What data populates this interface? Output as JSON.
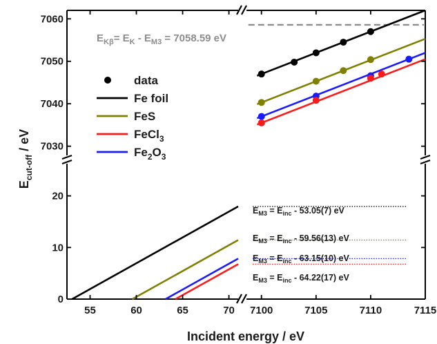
{
  "chart_data": {
    "type": "line",
    "xlabel": "Incident energy / eV",
    "ylabel": {
      "main": "E",
      "sub": "cut-off",
      "unit": "  / eV"
    },
    "colors": {
      "Fe foil": "#000000",
      "FeS": "#808000",
      "FeCl3": "#ff1a1a",
      "Fe2O3": "#1a1aff",
      "data_marker": "#000000",
      "kbeta_line": "#8c8c8c"
    },
    "panels": {
      "low_x": {
        "xlim": [
          52.5,
          71.3
        ],
        "ticks": [
          55,
          60,
          65,
          70
        ]
      },
      "high_x": {
        "xlim": [
          7098.5,
          7115
        ],
        "ticks": [
          7100,
          7105,
          7110,
          7115
        ]
      },
      "top_y": {
        "ylim": [
          7027.5,
          7062
        ],
        "ticks": [
          7030,
          7040,
          7050,
          7060
        ]
      },
      "bottom_y": {
        "ylim": [
          0,
          26.5
        ],
        "ticks": [
          0,
          10,
          20
        ]
      }
    },
    "legend": {
      "position": "upper-left",
      "entries": [
        {
          "label": "data",
          "kind": "marker",
          "color": "#000000"
        },
        {
          "label": "Fe foil",
          "kind": "line",
          "color": "#000000"
        },
        {
          "label": "FeS",
          "kind": "line",
          "color": "#808000"
        },
        {
          "label": "FeCl",
          "sub": "3",
          "kind": "line",
          "color": "#ff1a1a"
        },
        {
          "label": "Fe",
          "sub": "2",
          "label2": "O",
          "sub2": "3",
          "kind": "line",
          "color": "#1a1aff"
        }
      ]
    },
    "kbeta_annotation": {
      "text": {
        "a": "E",
        "a_sub": "Kβ",
        "b": "= E",
        "b_sub": "K",
        "c": " - E",
        "c_sub": "M3",
        "d": " = 7058.59 eV"
      },
      "value": 7058.59
    },
    "series": [
      {
        "name": "Fe foil",
        "color": "#000000",
        "fit_offset": 53.05,
        "equation": {
          "text": "E",
          "sub1": "M3",
          "mid": " = E",
          "sub2": "inc",
          "tail": " - 53.05(7) eV"
        },
        "data_points": [
          [
            7100,
            7047.0
          ],
          [
            7103,
            7049.8
          ],
          [
            7105,
            7052.0
          ],
          [
            7107.5,
            7054.5
          ],
          [
            7110,
            7057.0
          ]
        ]
      },
      {
        "name": "FeS",
        "color": "#808000",
        "fit_offset": 59.56,
        "equation": {
          "text": "E",
          "sub1": "M3",
          "mid": " = E",
          "sub2": "inc",
          "tail": " - 59.56(13) eV"
        },
        "data_points": [
          [
            7100,
            7040.3
          ],
          [
            7105,
            7045.3
          ],
          [
            7107.5,
            7047.8
          ],
          [
            7110,
            7050.4
          ]
        ]
      },
      {
        "name": "Fe2O3",
        "color": "#1a1aff",
        "fit_offset": 63.15,
        "equation": {
          "text": "E",
          "sub1": "M3",
          "mid": " = E",
          "sub2": "inc",
          "tail": " - 63.15(10) eV"
        },
        "data_points": [
          [
            7100,
            7037.0
          ],
          [
            7105,
            7041.8
          ],
          [
            7110,
            7046.6
          ],
          [
            7113.5,
            7050.5
          ]
        ]
      },
      {
        "name": "FeCl3",
        "color": "#ff1a1a",
        "fit_offset": 64.22,
        "equation": {
          "text": "E",
          "sub1": "M3",
          "mid": " = E",
          "sub2": "inc",
          "tail": " - 64.22(17) eV"
        },
        "data_points": [
          [
            7100,
            7035.5
          ],
          [
            7105,
            7040.8
          ],
          [
            7110,
            7046.0
          ],
          [
            7111,
            7047.0
          ]
        ]
      }
    ]
  }
}
